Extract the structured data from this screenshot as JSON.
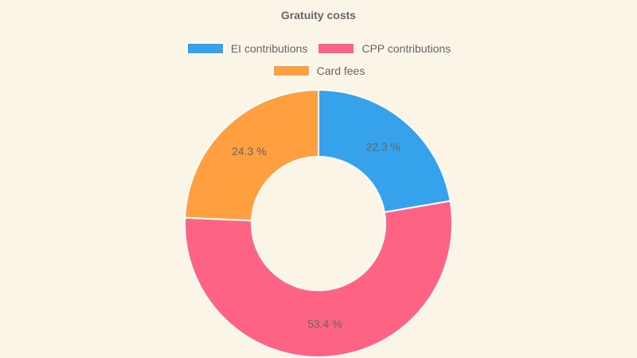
{
  "chart_data": {
    "type": "pie",
    "subtype": "doughnut",
    "title": "Gratuity costs",
    "categories": [
      "EI contributions",
      "CPP contributions",
      "Card fees"
    ],
    "values": [
      22.3,
      53.4,
      24.3
    ],
    "labels": [
      "22.3 %",
      "53.4 %",
      "24.3 %"
    ],
    "colors": [
      "#36a2eb",
      "#ff6384",
      "#ff9f40"
    ],
    "legend_position": "top"
  },
  "legend": {
    "items": [
      {
        "label": "EI contributions",
        "color": "#36a2eb"
      },
      {
        "label": "CPP contributions",
        "color": "#ff6384"
      },
      {
        "label": "Card fees",
        "color": "#ff9f40"
      }
    ]
  }
}
